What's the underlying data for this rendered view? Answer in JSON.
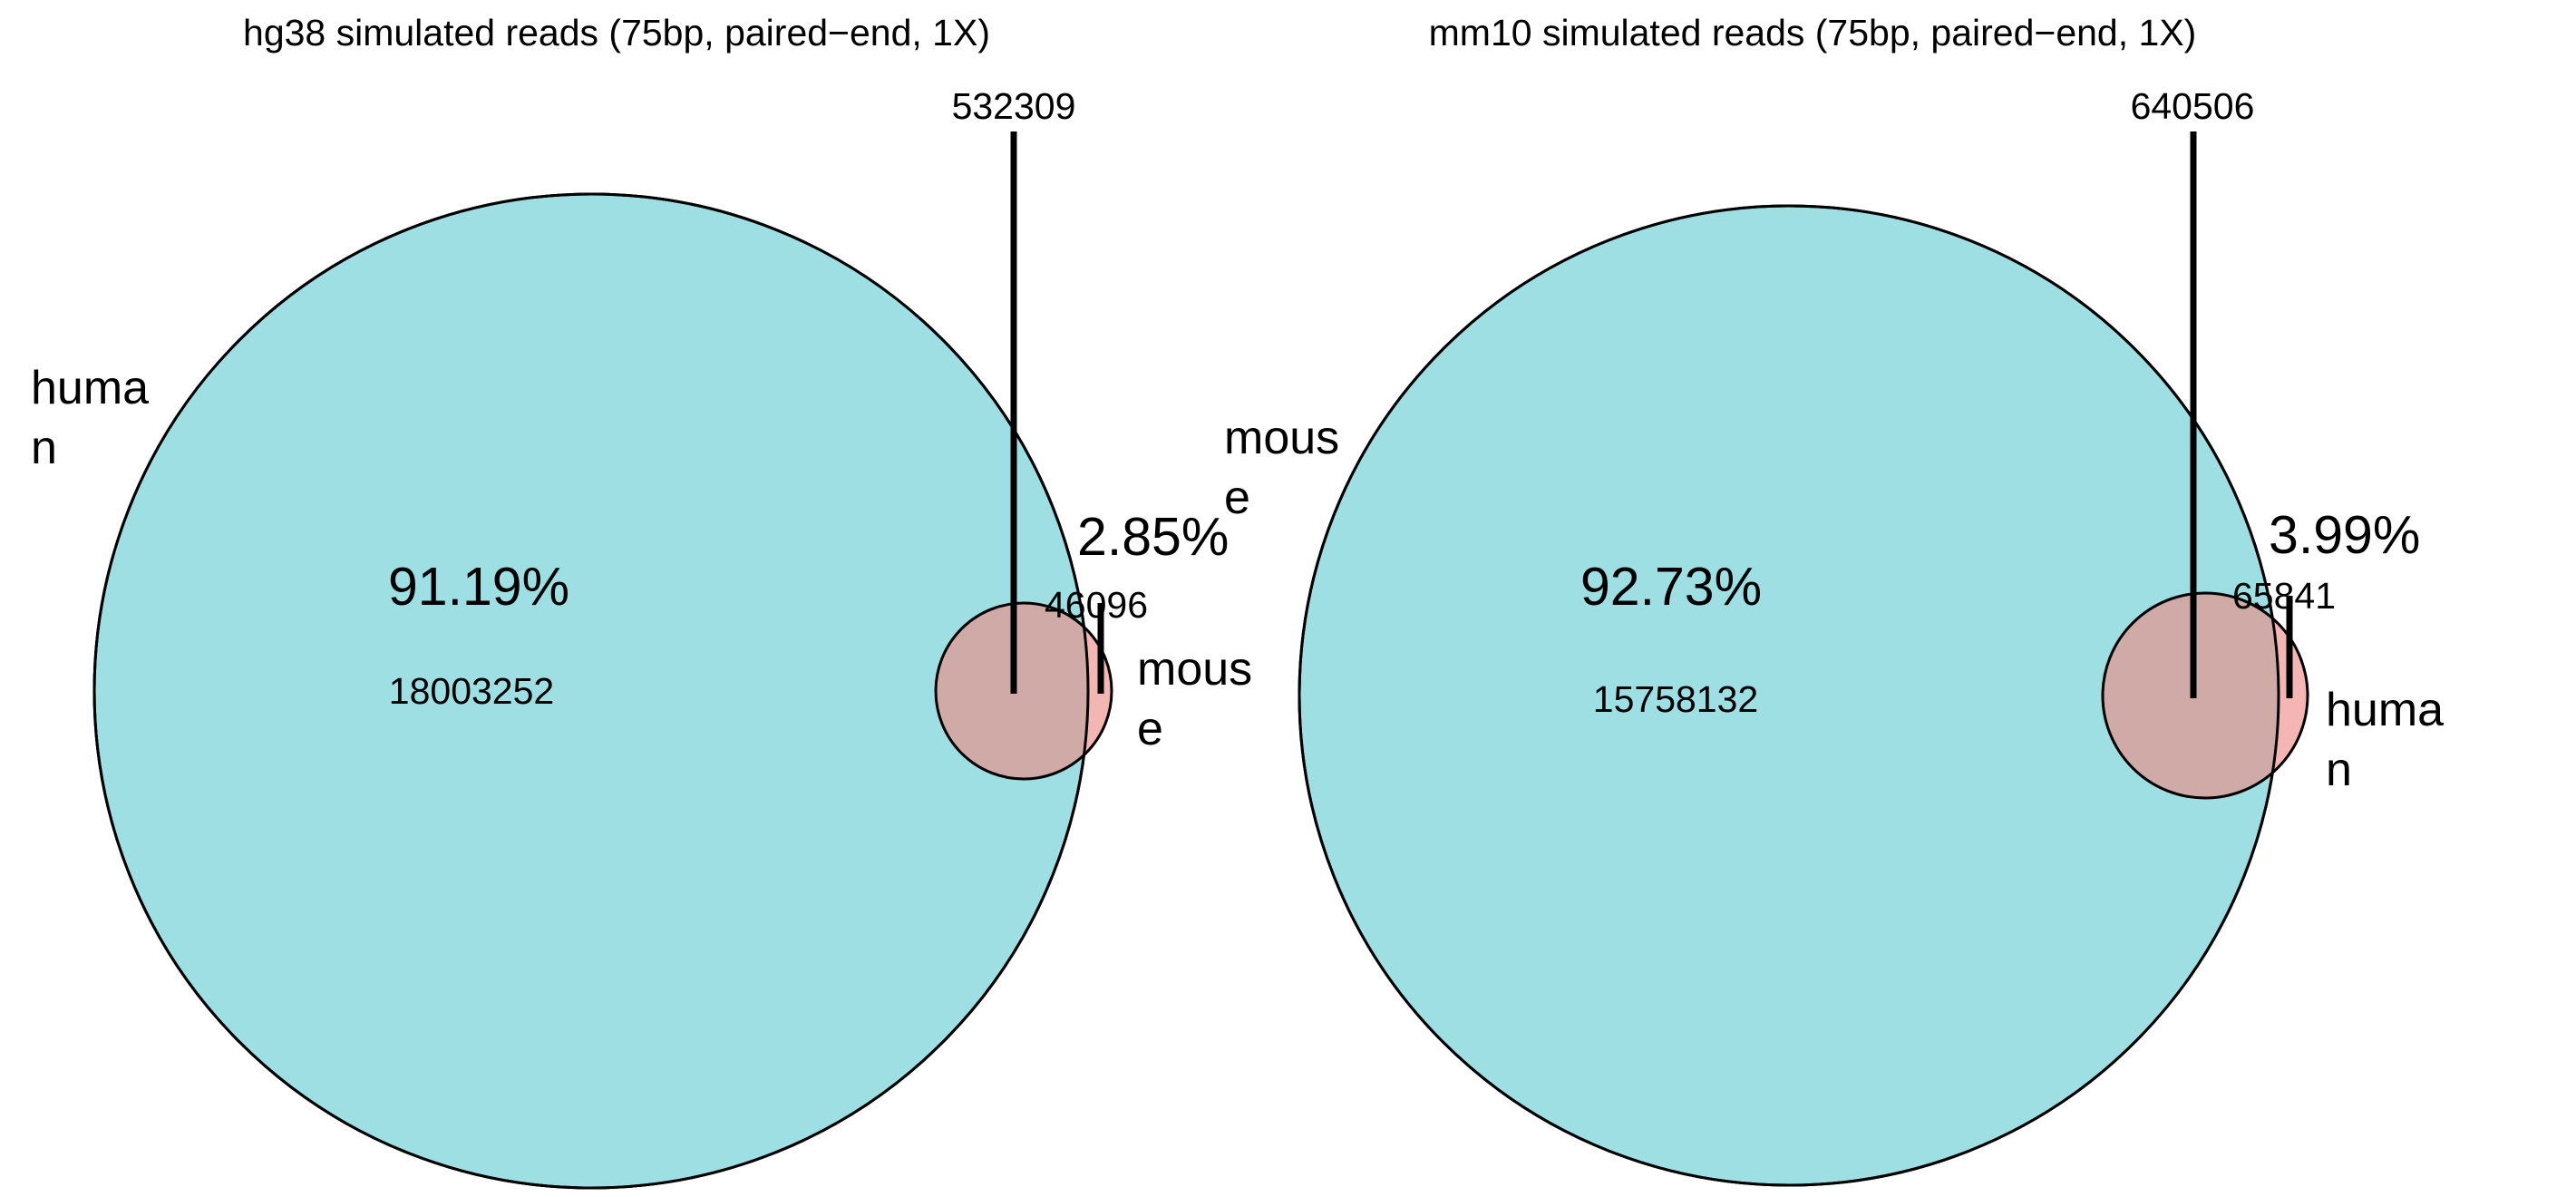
{
  "chart_data": [
    {
      "type": "venn",
      "title": "hg38 simulated reads (75bp, paired−end, 1X)",
      "sets": [
        {
          "label_lines": [
            "huma",
            "n"
          ],
          "color": "#9ddfe3"
        },
        {
          "label_lines": [
            "mous",
            "e"
          ],
          "color": "#f4b6b2"
        }
      ],
      "regions": {
        "only_a": {
          "count": "18003252",
          "percent": "91.19%"
        },
        "overlap": {
          "count": "532309"
        },
        "only_b": {
          "count": "46096",
          "percent": "2.85%"
        }
      },
      "overlap_color": "#cfaaa6"
    },
    {
      "type": "venn",
      "title": "mm10 simulated reads (75bp, paired−end, 1X)",
      "sets": [
        {
          "label_lines": [
            "mous",
            "e"
          ],
          "color": "#9ddfe3"
        },
        {
          "label_lines": [
            "huma",
            "n"
          ],
          "color": "#f4b6b2"
        }
      ],
      "regions": {
        "only_a": {
          "count": "15758132",
          "percent": "92.73%"
        },
        "overlap": {
          "count": "640506"
        },
        "only_b": {
          "count": "65841",
          "percent": "3.99%"
        }
      },
      "overlap_color": "#cfaaa6"
    }
  ]
}
